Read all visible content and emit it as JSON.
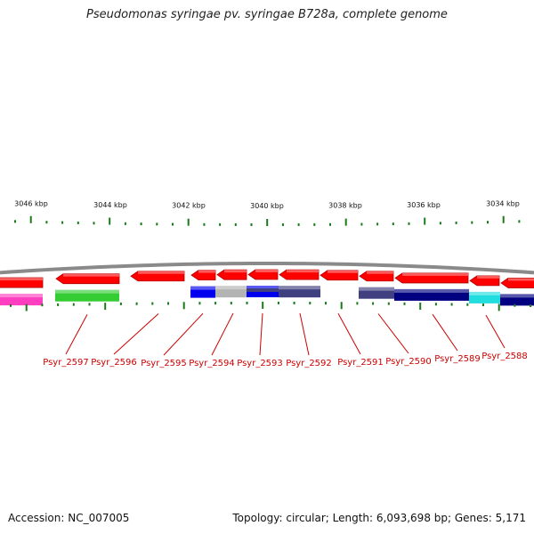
{
  "title": "Pseudomonas syringae pv. syringae B728a, complete genome",
  "footer": {
    "accession": "Accession: NC_007005",
    "stats": "Topology: circular; Length: 6,093,698 bp; Genes: 5,171"
  },
  "kbp_labels": [
    "3046 kbp",
    "3044 kbp",
    "3042 kbp",
    "3040 kbp",
    "3038 kbp",
    "3036 kbp",
    "3034 kbp"
  ],
  "gene_labels": [
    "Psyr_2597",
    "Psyr_2596",
    "Psyr_2595",
    "Psyr_2594",
    "Psyr_2593",
    "Psyr_2592",
    "Psyr_2591",
    "Psyr_2590",
    "Psyr_2589",
    "Psyr_2588"
  ],
  "colors": {
    "backbone": "#8a8a8a",
    "gene_arrow": "#ff0000",
    "label": "#cc0000",
    "tick": "#1a7a1a",
    "cog_magenta": "#ff3fbf",
    "cog_green": "#33cc33",
    "cog_blue": "#0000ee",
    "cog_gray": "#b3b3b3",
    "cog_slate": "#404080",
    "cog_navy": "#000080",
    "cog_cyan": "#22dddd"
  }
}
